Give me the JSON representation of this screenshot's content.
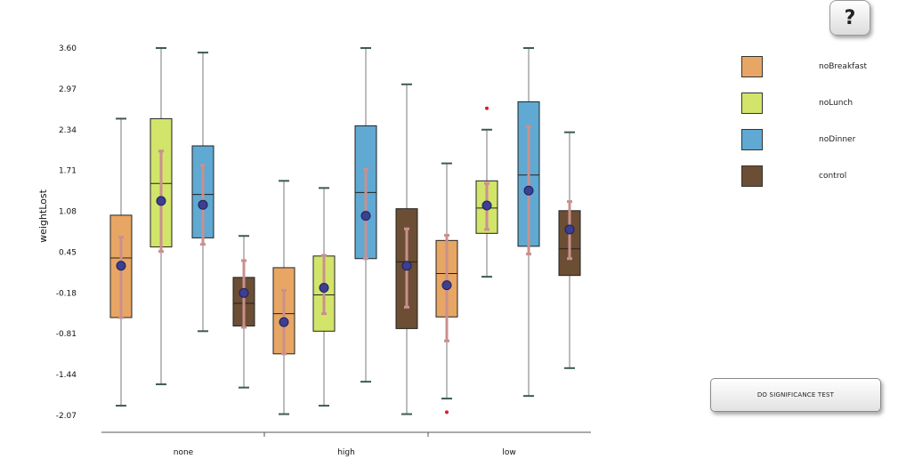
{
  "help": {
    "label": "?"
  },
  "significance": {
    "label": "DO SIGNIFICANCE TEST"
  },
  "legend": [
    {
      "label": "noBreakfast",
      "color": "#E8A664"
    },
    {
      "label": "noLunch",
      "color": "#D2E56A"
    },
    {
      "label": "noDinner",
      "color": "#5FA9D3"
    },
    {
      "label": "control",
      "color": "#6B4E33"
    }
  ],
  "chart_data": {
    "type": "boxplot",
    "ylabel": "weightLost",
    "xlabel": "",
    "ylim": [
      -2.07,
      3.6
    ],
    "yticks": [
      "3.60",
      "2.97",
      "2.34",
      "1.71",
      "1.08",
      "0.45",
      "-0.18",
      "-0.81",
      "-1.44",
      "-2.07"
    ],
    "categories": [
      "none",
      "high",
      "low"
    ],
    "series_names": [
      "noBreakfast",
      "noLunch",
      "noDinner",
      "control"
    ],
    "series_colors": [
      "#E8A664",
      "#D2E56A",
      "#5FA9D3",
      "#6B4E33"
    ],
    "boxes": [
      {
        "category": "none",
        "series": "noBreakfast",
        "min": -1.92,
        "q1": -0.56,
        "median": 0.36,
        "q3": 1.02,
        "max": 2.51,
        "mean": 0.24,
        "ci": [
          -0.56,
          0.68
        ],
        "outliers": []
      },
      {
        "category": "none",
        "series": "noLunch",
        "min": -1.59,
        "q1": 0.53,
        "median": 1.51,
        "q3": 2.51,
        "max": 3.6,
        "mean": 1.24,
        "ci": [
          0.46,
          2.01
        ],
        "outliers": []
      },
      {
        "category": "none",
        "series": "noDinner",
        "min": -0.77,
        "q1": 0.67,
        "median": 1.34,
        "q3": 2.09,
        "max": 3.53,
        "mean": 1.18,
        "ci": [
          0.57,
          1.79
        ],
        "outliers": []
      },
      {
        "category": "none",
        "series": "control",
        "min": -1.64,
        "q1": -0.69,
        "median": -0.34,
        "q3": 0.06,
        "max": 0.7,
        "mean": -0.18,
        "ci": [
          -0.71,
          0.32
        ],
        "outliers": []
      },
      {
        "category": "high",
        "series": "noBreakfast",
        "min": -2.05,
        "q1": -1.12,
        "median": -0.5,
        "q3": 0.21,
        "max": 1.55,
        "mean": -0.63,
        "ci": [
          -1.12,
          -0.14
        ],
        "outliers": []
      },
      {
        "category": "high",
        "series": "noLunch",
        "min": -1.92,
        "q1": -0.77,
        "median": -0.21,
        "q3": 0.39,
        "max": 1.44,
        "mean": -0.1,
        "ci": [
          -0.5,
          0.4
        ],
        "outliers": []
      },
      {
        "category": "high",
        "series": "noDinner",
        "min": -1.55,
        "q1": 0.35,
        "median": 1.37,
        "q3": 2.4,
        "max": 3.6,
        "mean": 1.01,
        "ci": [
          0.35,
          1.73
        ],
        "outliers": []
      },
      {
        "category": "high",
        "series": "control",
        "min": -2.05,
        "q1": -0.73,
        "median": 0.3,
        "q3": 1.12,
        "max": 3.04,
        "mean": 0.24,
        "ci": [
          -0.4,
          0.81
        ],
        "outliers": []
      },
      {
        "category": "low",
        "series": "noBreakfast",
        "min": -1.81,
        "q1": -0.55,
        "median": 0.12,
        "q3": 0.63,
        "max": 1.82,
        "mean": -0.06,
        "ci": [
          -0.92,
          0.71
        ],
        "outliers": [
          -2.02
        ]
      },
      {
        "category": "low",
        "series": "noLunch",
        "min": 0.07,
        "q1": 0.74,
        "median": 1.13,
        "q3": 1.55,
        "max": 2.34,
        "mean": 1.17,
        "ci": [
          0.8,
          1.51
        ],
        "outliers": [
          2.67
        ]
      },
      {
        "category": "low",
        "series": "noDinner",
        "min": -1.77,
        "q1": 0.54,
        "median": 1.64,
        "q3": 2.77,
        "max": 3.6,
        "mean": 1.4,
        "ci": [
          0.42,
          2.39
        ],
        "outliers": []
      },
      {
        "category": "low",
        "series": "control",
        "min": -1.34,
        "q1": 0.09,
        "median": 0.5,
        "q3": 1.09,
        "max": 2.3,
        "mean": 0.8,
        "ci": [
          0.35,
          1.23
        ],
        "outliers": []
      }
    ]
  }
}
